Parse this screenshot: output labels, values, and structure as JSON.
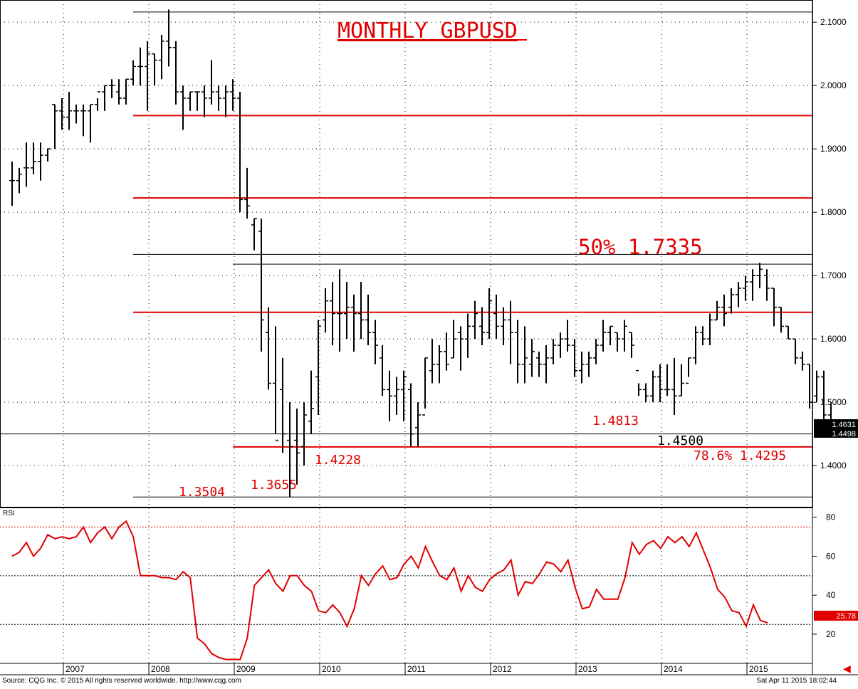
{
  "chart_data": [
    {
      "type": "ohlc",
      "title": "MONTHLY GBPUSD",
      "ylim": [
        1.335,
        2.135
      ],
      "yticks": [
        "2.1000",
        "2.0000",
        "1.9000",
        "1.8000",
        "1.7000",
        "1.6000",
        "1.5000",
        "1.4000"
      ],
      "xticks": [
        "2007",
        "2008",
        "2009",
        "2010",
        "2011",
        "2012",
        "2013",
        "2014",
        "2015"
      ],
      "grid": true,
      "bars": [
        [
          1.88,
          1.81,
          1.85,
          1.85
        ],
        [
          1.87,
          1.83,
          1.85,
          1.86
        ],
        [
          1.91,
          1.84,
          1.87,
          1.87
        ],
        [
          1.91,
          1.86,
          1.87,
          1.88
        ],
        [
          1.91,
          1.85,
          1.88,
          1.89
        ],
        [
          1.9,
          1.88,
          1.89,
          1.9
        ],
        [
          1.97,
          1.9,
          1.97,
          1.96
        ],
        [
          1.98,
          1.93,
          1.96,
          1.95
        ],
        [
          1.99,
          1.93,
          1.95,
          1.96
        ],
        [
          1.97,
          1.94,
          1.96,
          1.96
        ],
        [
          1.97,
          1.92,
          1.96,
          1.96
        ],
        [
          1.97,
          1.91,
          1.96,
          1.97
        ],
        [
          1.98,
          1.96,
          1.97,
          1.99
        ],
        [
          2.0,
          1.96,
          1.99,
          2.0
        ],
        [
          2.01,
          1.98,
          2.0,
          2.0
        ],
        [
          2.01,
          1.97,
          1.99,
          1.98
        ],
        [
          2.01,
          1.97,
          1.98,
          2.01
        ],
        [
          2.04,
          2.0,
          2.01,
          2.03
        ],
        [
          2.06,
          2.0,
          2.03,
          2.03
        ],
        [
          2.07,
          1.96,
          2.03,
          2.05
        ],
        [
          2.05,
          2.0,
          2.05,
          2.04
        ],
        [
          2.08,
          2.01,
          2.04,
          2.07
        ],
        [
          2.12,
          2.03,
          2.07,
          2.06
        ],
        [
          2.07,
          1.97,
          2.06,
          1.99
        ],
        [
          2.0,
          1.93,
          1.99,
          1.98
        ],
        [
          1.99,
          1.96,
          1.98,
          1.99
        ],
        [
          1.99,
          1.96,
          1.99,
          1.99
        ],
        [
          2.0,
          1.95,
          1.99,
          1.98
        ],
        [
          2.04,
          1.97,
          1.98,
          1.99
        ],
        [
          2.0,
          1.96,
          1.99,
          1.98
        ],
        [
          2.0,
          1.95,
          1.98,
          1.99
        ],
        [
          2.01,
          1.96,
          1.99,
          1.98
        ],
        [
          1.99,
          1.8,
          1.98,
          1.82
        ],
        [
          1.87,
          1.79,
          1.82,
          1.81
        ],
        [
          1.79,
          1.74,
          1.78,
          1.79
        ],
        [
          1.79,
          1.58,
          1.77,
          1.63
        ],
        [
          1.65,
          1.52,
          1.61,
          1.53
        ],
        [
          1.62,
          1.45,
          1.53,
          1.44
        ],
        [
          1.57,
          1.42,
          1.52,
          1.45
        ],
        [
          1.5,
          1.35,
          1.44,
          1.43
        ],
        [
          1.49,
          1.37,
          1.44,
          1.42
        ],
        [
          1.5,
          1.4,
          1.43,
          1.48
        ],
        [
          1.55,
          1.45,
          1.47,
          1.49
        ],
        [
          1.63,
          1.48,
          1.54,
          1.62
        ],
        [
          1.68,
          1.61,
          1.63,
          1.66
        ],
        [
          1.69,
          1.59,
          1.66,
          1.64
        ],
        [
          1.71,
          1.58,
          1.64,
          1.64
        ],
        [
          1.69,
          1.6,
          1.64,
          1.65
        ],
        [
          1.67,
          1.58,
          1.65,
          1.64
        ],
        [
          1.69,
          1.6,
          1.64,
          1.63
        ],
        [
          1.67,
          1.59,
          1.63,
          1.61
        ],
        [
          1.63,
          1.56,
          1.61,
          1.59
        ],
        [
          1.59,
          1.51,
          1.57,
          1.52
        ],
        [
          1.55,
          1.47,
          1.52,
          1.51
        ],
        [
          1.54,
          1.48,
          1.51,
          1.52
        ],
        [
          1.55,
          1.47,
          1.52,
          1.54
        ],
        [
          1.53,
          1.43,
          1.52,
          1.45
        ],
        [
          1.5,
          1.43,
          1.46,
          1.48
        ],
        [
          1.57,
          1.49,
          1.48,
          1.57
        ],
        [
          1.6,
          1.53,
          1.55,
          1.56
        ],
        [
          1.59,
          1.53,
          1.56,
          1.58
        ],
        [
          1.61,
          1.55,
          1.58,
          1.56
        ],
        [
          1.63,
          1.57,
          1.57,
          1.6
        ],
        [
          1.62,
          1.55,
          1.61,
          1.6
        ],
        [
          1.64,
          1.57,
          1.6,
          1.62
        ],
        [
          1.66,
          1.6,
          1.62,
          1.64
        ],
        [
          1.65,
          1.59,
          1.62,
          1.61
        ],
        [
          1.68,
          1.6,
          1.61,
          1.66
        ],
        [
          1.67,
          1.6,
          1.64,
          1.62
        ],
        [
          1.65,
          1.59,
          1.62,
          1.63
        ],
        [
          1.66,
          1.56,
          1.63,
          1.61
        ],
        [
          1.63,
          1.53,
          1.61,
          1.56
        ],
        [
          1.62,
          1.53,
          1.56,
          1.57
        ],
        [
          1.6,
          1.54,
          1.56,
          1.58
        ],
        [
          1.58,
          1.54,
          1.57,
          1.56
        ],
        [
          1.59,
          1.53,
          1.56,
          1.57
        ],
        [
          1.6,
          1.56,
          1.57,
          1.59
        ],
        [
          1.61,
          1.57,
          1.59,
          1.6
        ],
        [
          1.63,
          1.58,
          1.6,
          1.59
        ],
        [
          1.6,
          1.54,
          1.59,
          1.55
        ],
        [
          1.58,
          1.53,
          1.55,
          1.56
        ],
        [
          1.58,
          1.54,
          1.56,
          1.57
        ],
        [
          1.6,
          1.56,
          1.57,
          1.59
        ],
        [
          1.63,
          1.58,
          1.59,
          1.61
        ],
        [
          1.62,
          1.59,
          1.61,
          1.62
        ],
        [
          1.61,
          1.58,
          1.61,
          1.6
        ],
        [
          1.63,
          1.58,
          1.6,
          1.62
        ],
        [
          1.61,
          1.57,
          1.61,
          1.59
        ],
        [
          1.53,
          1.51,
          1.55,
          1.52
        ],
        [
          1.53,
          1.5,
          1.52,
          1.51
        ],
        [
          1.55,
          1.5,
          1.51,
          1.54
        ],
        [
          1.56,
          1.5,
          1.54,
          1.52
        ],
        [
          1.56,
          1.51,
          1.52,
          1.52
        ],
        [
          1.57,
          1.48,
          1.52,
          1.51
        ],
        [
          1.56,
          1.51,
          1.51,
          1.53
        ],
        [
          1.57,
          1.54,
          1.53,
          1.57
        ],
        [
          1.62,
          1.56,
          1.57,
          1.61
        ],
        [
          1.62,
          1.59,
          1.61,
          1.6
        ],
        [
          1.64,
          1.59,
          1.6,
          1.63
        ],
        [
          1.66,
          1.63,
          1.63,
          1.65
        ],
        [
          1.67,
          1.62,
          1.65,
          1.64
        ],
        [
          1.68,
          1.64,
          1.65,
          1.67
        ],
        [
          1.69,
          1.65,
          1.67,
          1.68
        ],
        [
          1.7,
          1.66,
          1.68,
          1.69
        ],
        [
          1.71,
          1.66,
          1.69,
          1.7
        ],
        [
          1.72,
          1.68,
          1.7,
          1.71
        ],
        [
          1.71,
          1.66,
          1.7,
          1.68
        ],
        [
          1.68,
          1.62,
          1.68,
          1.65
        ],
        [
          1.65,
          1.61,
          1.65,
          1.62
        ],
        [
          1.62,
          1.6,
          1.62,
          1.6
        ],
        [
          1.6,
          1.56,
          1.6,
          1.57
        ],
        [
          1.58,
          1.55,
          1.57,
          1.56
        ],
        [
          1.56,
          1.49,
          1.56,
          1.5
        ],
        [
          1.55,
          1.5,
          1.51,
          1.54
        ],
        [
          1.55,
          1.46,
          1.54,
          1.48
        ],
        [
          1.5,
          1.46,
          1.48,
          1.46
        ]
      ],
      "hlines": [
        {
          "y": 2.1161,
          "color": "#000000"
        },
        {
          "y": 1.9525,
          "color": "#e00000"
        },
        {
          "y": 1.8225,
          "color": "#e00000"
        },
        {
          "y": 1.7335,
          "color": "#000000"
        },
        {
          "y": 1.718,
          "color": "#000000"
        },
        {
          "y": 1.642,
          "color": "#e00000"
        },
        {
          "y": 1.45,
          "color": "#000000"
        },
        {
          "y": 1.4295,
          "color": "#e00000"
        },
        {
          "y": 1.3504,
          "color": "#000000"
        }
      ],
      "annotations": [
        {
          "text": "50% 1.7335",
          "color": "#e00000"
        },
        {
          "text": "1.4813",
          "color": "#e00000"
        },
        {
          "text": "1.4500",
          "color": "#000000"
        },
        {
          "text": "78.6% 1.4295",
          "color": "#e00000"
        },
        {
          "text": "1.4228",
          "color": "#e00000"
        },
        {
          "text": "1.3504",
          "color": "#e00000"
        },
        {
          "text": "1.3655",
          "color": "#e00000"
        }
      ],
      "last_price_boxes": [
        "1.4631",
        "1.4498"
      ]
    },
    {
      "type": "line",
      "title": "RSI",
      "ylim": [
        5,
        85
      ],
      "yticks": [
        "80",
        "60",
        "40",
        "20"
      ],
      "reference_levels": [
        {
          "y": 75,
          "color": "#e00000"
        },
        {
          "y": 50,
          "color": "#000000"
        },
        {
          "y": 25,
          "color": "#000000"
        }
      ],
      "last_value": "25.78",
      "series": [
        {
          "color": "#e00000",
          "values": [
            60,
            62,
            67,
            60,
            64,
            71,
            69,
            70,
            69,
            70,
            75,
            67,
            72,
            75,
            69,
            75,
            78,
            70,
            50,
            50,
            50,
            49,
            49,
            48,
            52,
            49,
            18,
            15,
            10,
            8,
            7,
            7,
            7,
            18,
            45,
            49,
            53,
            46,
            42,
            50,
            50,
            45,
            42,
            32,
            31,
            35,
            31,
            24,
            33,
            50,
            45,
            51,
            55,
            48,
            49,
            56,
            60,
            54,
            65,
            57,
            50,
            48,
            54,
            42,
            50,
            44,
            42,
            48,
            51,
            53,
            58,
            40,
            47,
            46,
            51,
            57,
            56,
            52,
            58,
            44,
            33,
            34,
            43,
            38,
            38,
            38,
            49,
            67,
            61,
            66,
            68,
            64,
            70,
            67,
            70,
            65,
            72,
            63,
            54,
            43,
            39,
            32,
            31,
            24,
            35,
            27,
            25.78
          ]
        }
      ]
    }
  ],
  "footer": {
    "source": "Source: CQG Inc. © 2015 All rights reserved worldwide.  http://www.cqg.com",
    "timestamp": "Sat Apr 11 2015 18:02:44"
  },
  "icons": {
    "back_arrow": "left-arrow-icon"
  }
}
